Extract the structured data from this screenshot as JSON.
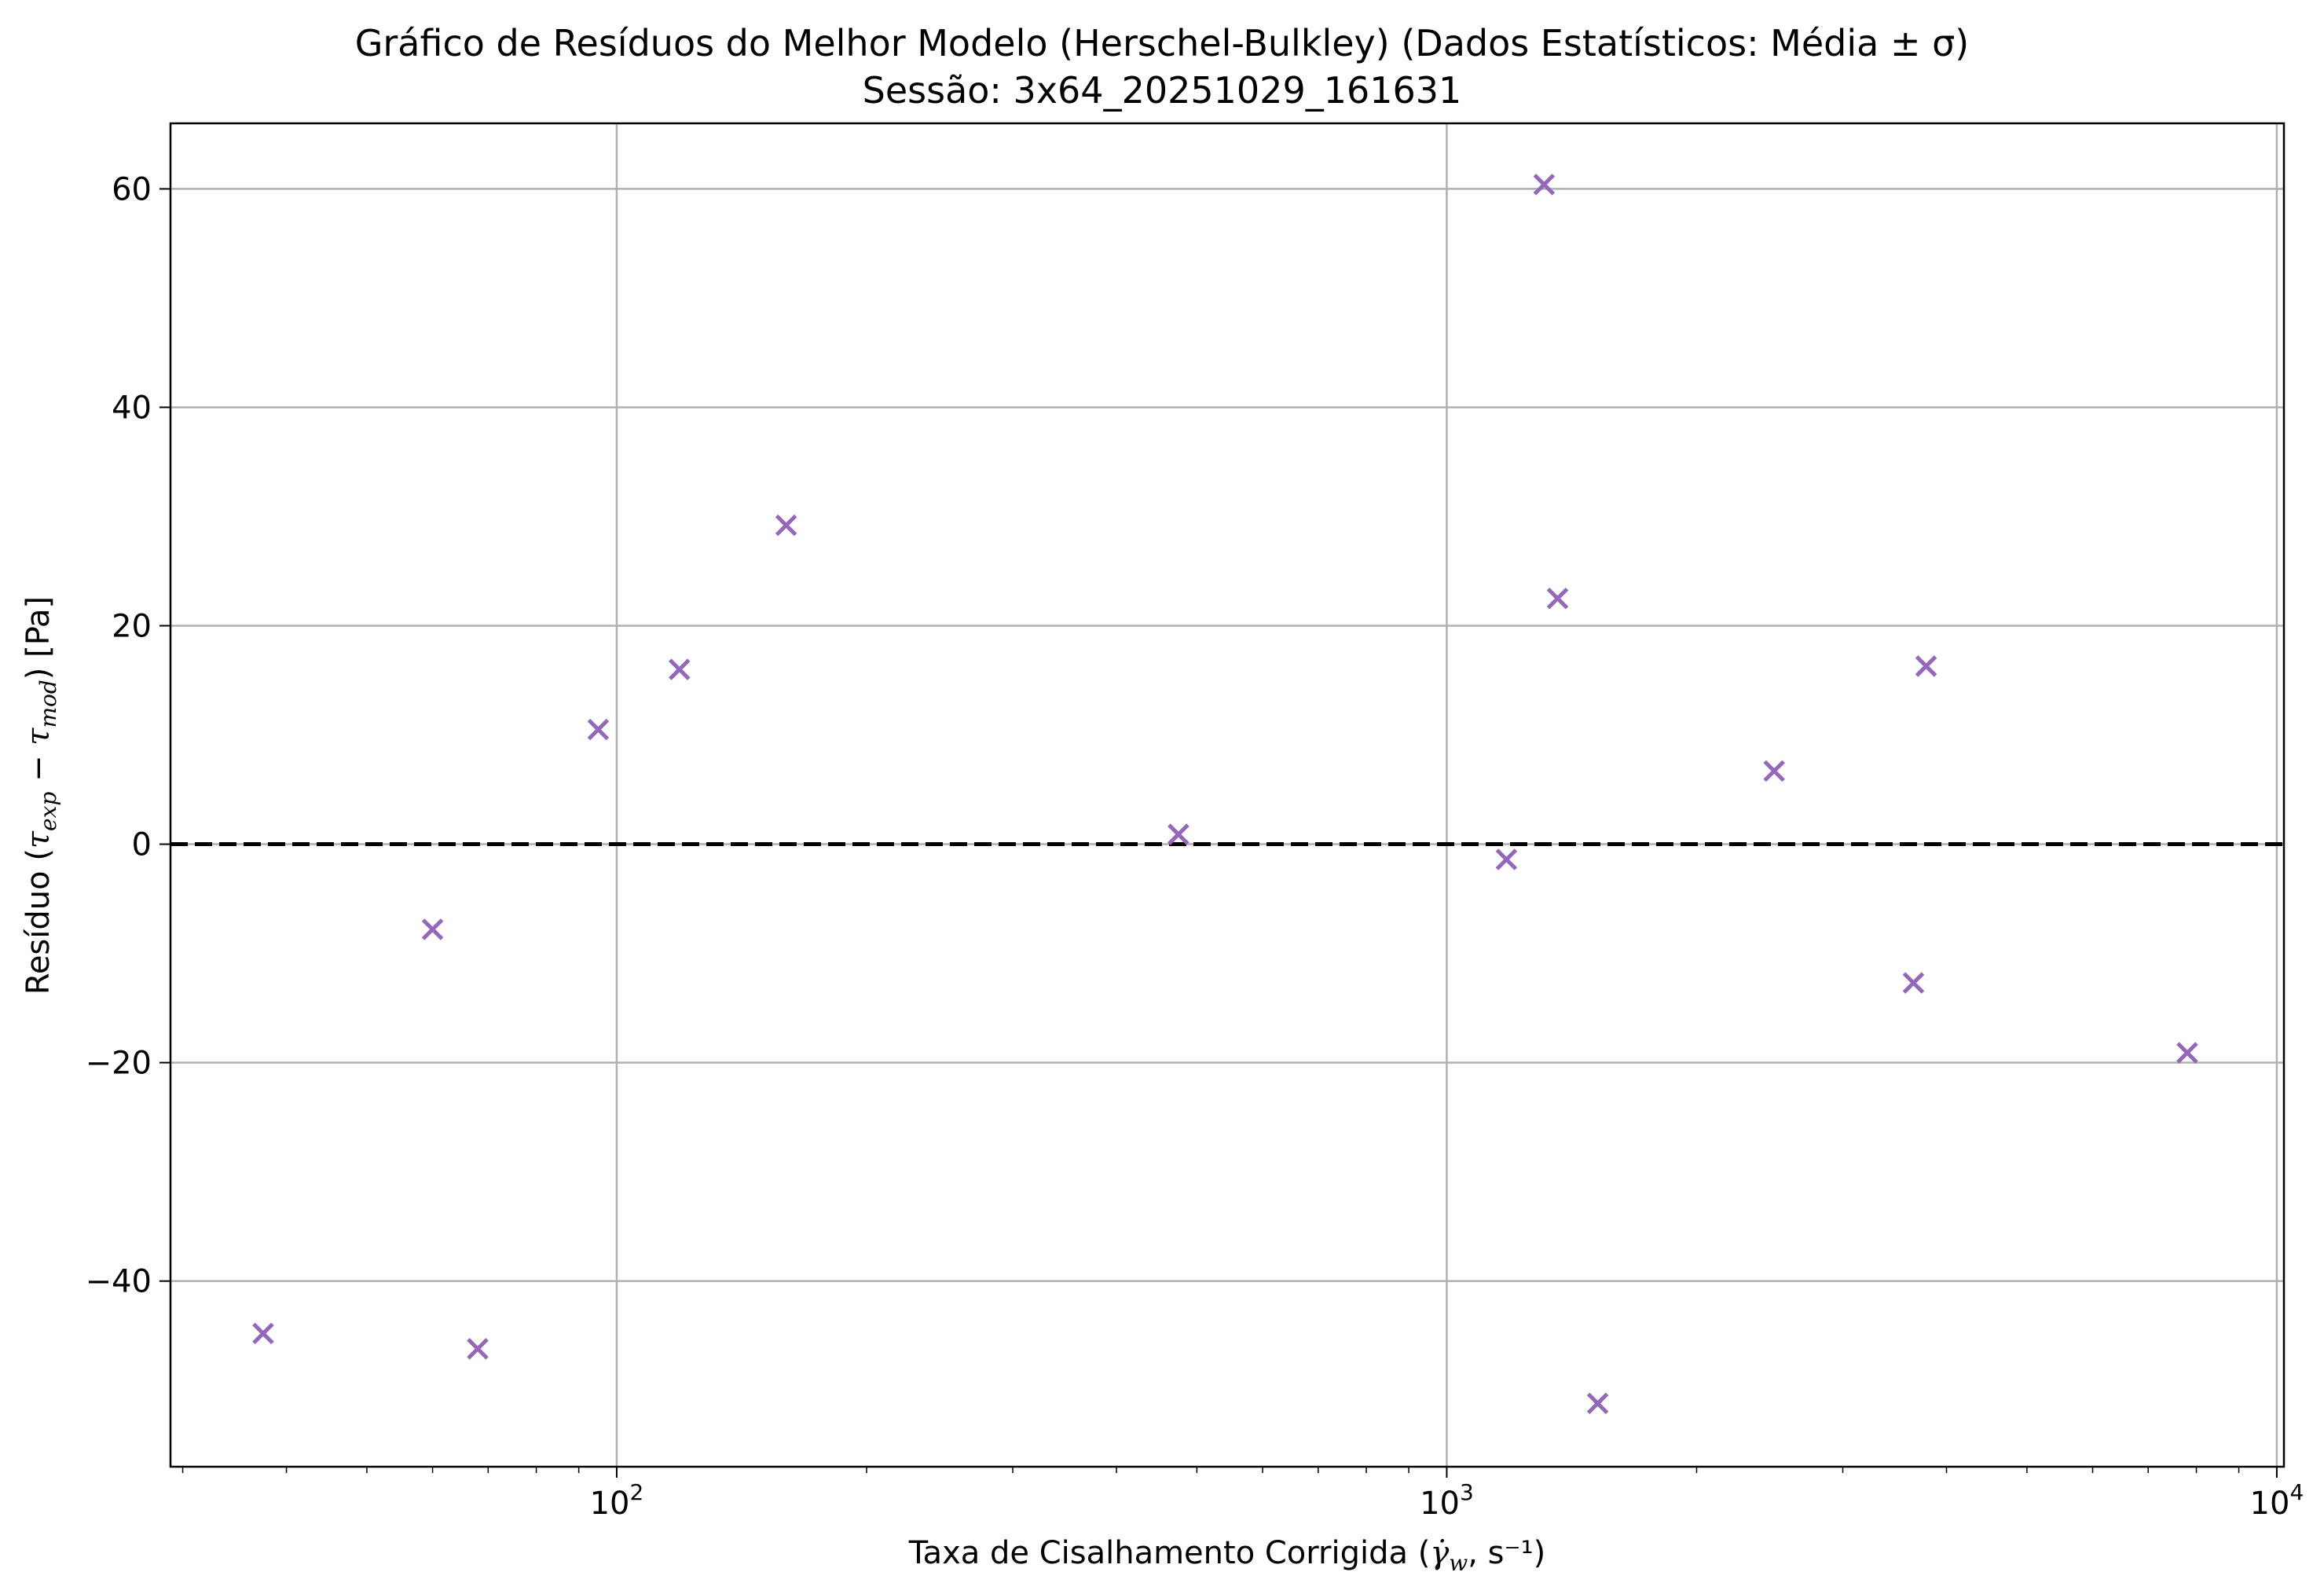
{
  "chart_data": {
    "type": "scatter",
    "title": "Gráfico de Resíduos do Melhor Modelo (Herschel-Bulkley) (Dados Estatísticos: Média ± σ)",
    "subtitle": "Sessão: 3x64_20251029_161631",
    "xlabel": {
      "prefix": "Taxa de Cisalhamento Corrigida (",
      "symbol": "γ̇",
      "subscript": "w",
      "suffix": ", s⁻¹)"
    },
    "ylabel": {
      "prefix": "Resíduo (",
      "tau": "τ",
      "sub_exp": "exp",
      "minus": " − ",
      "sub_mod": "mod",
      "suffix": ") [Pa]"
    },
    "x_scale": "log",
    "xlim": [
      29,
      10200
    ],
    "ylim": [
      -57,
      66
    ],
    "x_ticks": [
      {
        "value": 100,
        "base": "10",
        "exp": "2"
      },
      {
        "value": 1000,
        "base": "10",
        "exp": "3"
      },
      {
        "value": 10000,
        "base": "10",
        "exp": "4"
      }
    ],
    "y_ticks": [
      {
        "value": 60,
        "label": "60"
      },
      {
        "value": 40,
        "label": "40"
      },
      {
        "value": 20,
        "label": "20"
      },
      {
        "value": 0,
        "label": "0"
      },
      {
        "value": -20,
        "label": "−20"
      },
      {
        "value": -40,
        "label": "−40"
      }
    ],
    "grid": true,
    "reference_line": {
      "y": 0,
      "style": "dashed",
      "color": "#000000"
    },
    "marker": "x",
    "marker_color": "#9467bd",
    "points": [
      {
        "x": 37.5,
        "y": -44.8
      },
      {
        "x": 60,
        "y": -7.8
      },
      {
        "x": 68,
        "y": -46.2
      },
      {
        "x": 95,
        "y": 10.5
      },
      {
        "x": 119,
        "y": 16.0
      },
      {
        "x": 160,
        "y": 29.2
      },
      {
        "x": 475,
        "y": 0.9
      },
      {
        "x": 1180,
        "y": -1.4
      },
      {
        "x": 1310,
        "y": 60.4
      },
      {
        "x": 1360,
        "y": 22.5
      },
      {
        "x": 1520,
        "y": -51.2
      },
      {
        "x": 2480,
        "y": 6.7
      },
      {
        "x": 3650,
        "y": -12.7
      },
      {
        "x": 3780,
        "y": 16.3
      },
      {
        "x": 7800,
        "y": -19.1
      }
    ]
  }
}
